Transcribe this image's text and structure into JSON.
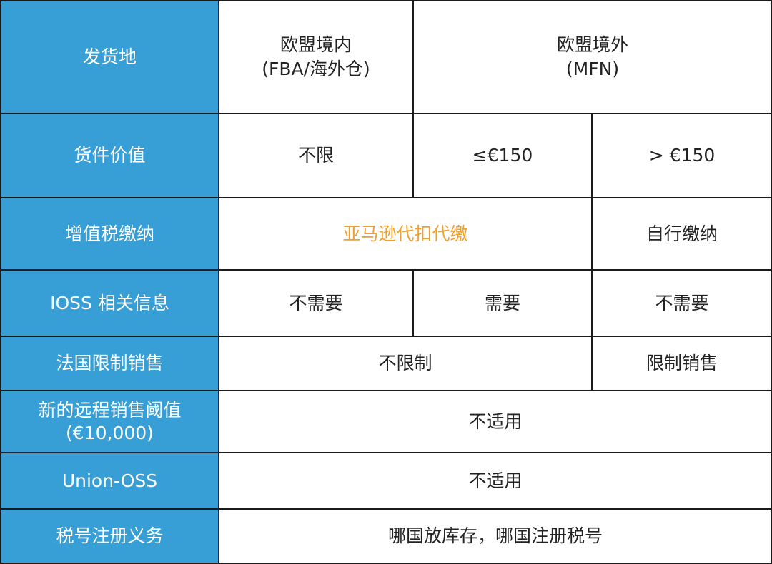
{
  "colors": {
    "header_bg": "#389fd6",
    "highlight": "#f0a030"
  },
  "rows": {
    "origin": {
      "label": "发货地",
      "in_eu_1": "欧盟境内",
      "in_eu_2": "(FBA/海外仓)",
      "out_eu_1": "欧盟境外",
      "out_eu_2": "(MFN)"
    },
    "value": {
      "label": "货件价值",
      "a": "不限",
      "b": "≤€150",
      "c": "> €150"
    },
    "vat": {
      "label": "增值税缴纳",
      "ab": "亚马逊代扣代缴",
      "c": "自行缴纳"
    },
    "ioss": {
      "label": "IOSS 相关信息",
      "a": "不需要",
      "b": "需要",
      "c": "不需要"
    },
    "france": {
      "label": "法国限制销售",
      "ab": "不限制",
      "c": "限制销售"
    },
    "threshold": {
      "label_1": "新的远程销售阈值",
      "label_2": "(€10,000)",
      "value": "不适用"
    },
    "oss": {
      "label": "Union-OSS",
      "value": "不适用"
    },
    "taxid": {
      "label": "税号注册义务",
      "value": "哪国放库存，哪国注册税号"
    }
  }
}
